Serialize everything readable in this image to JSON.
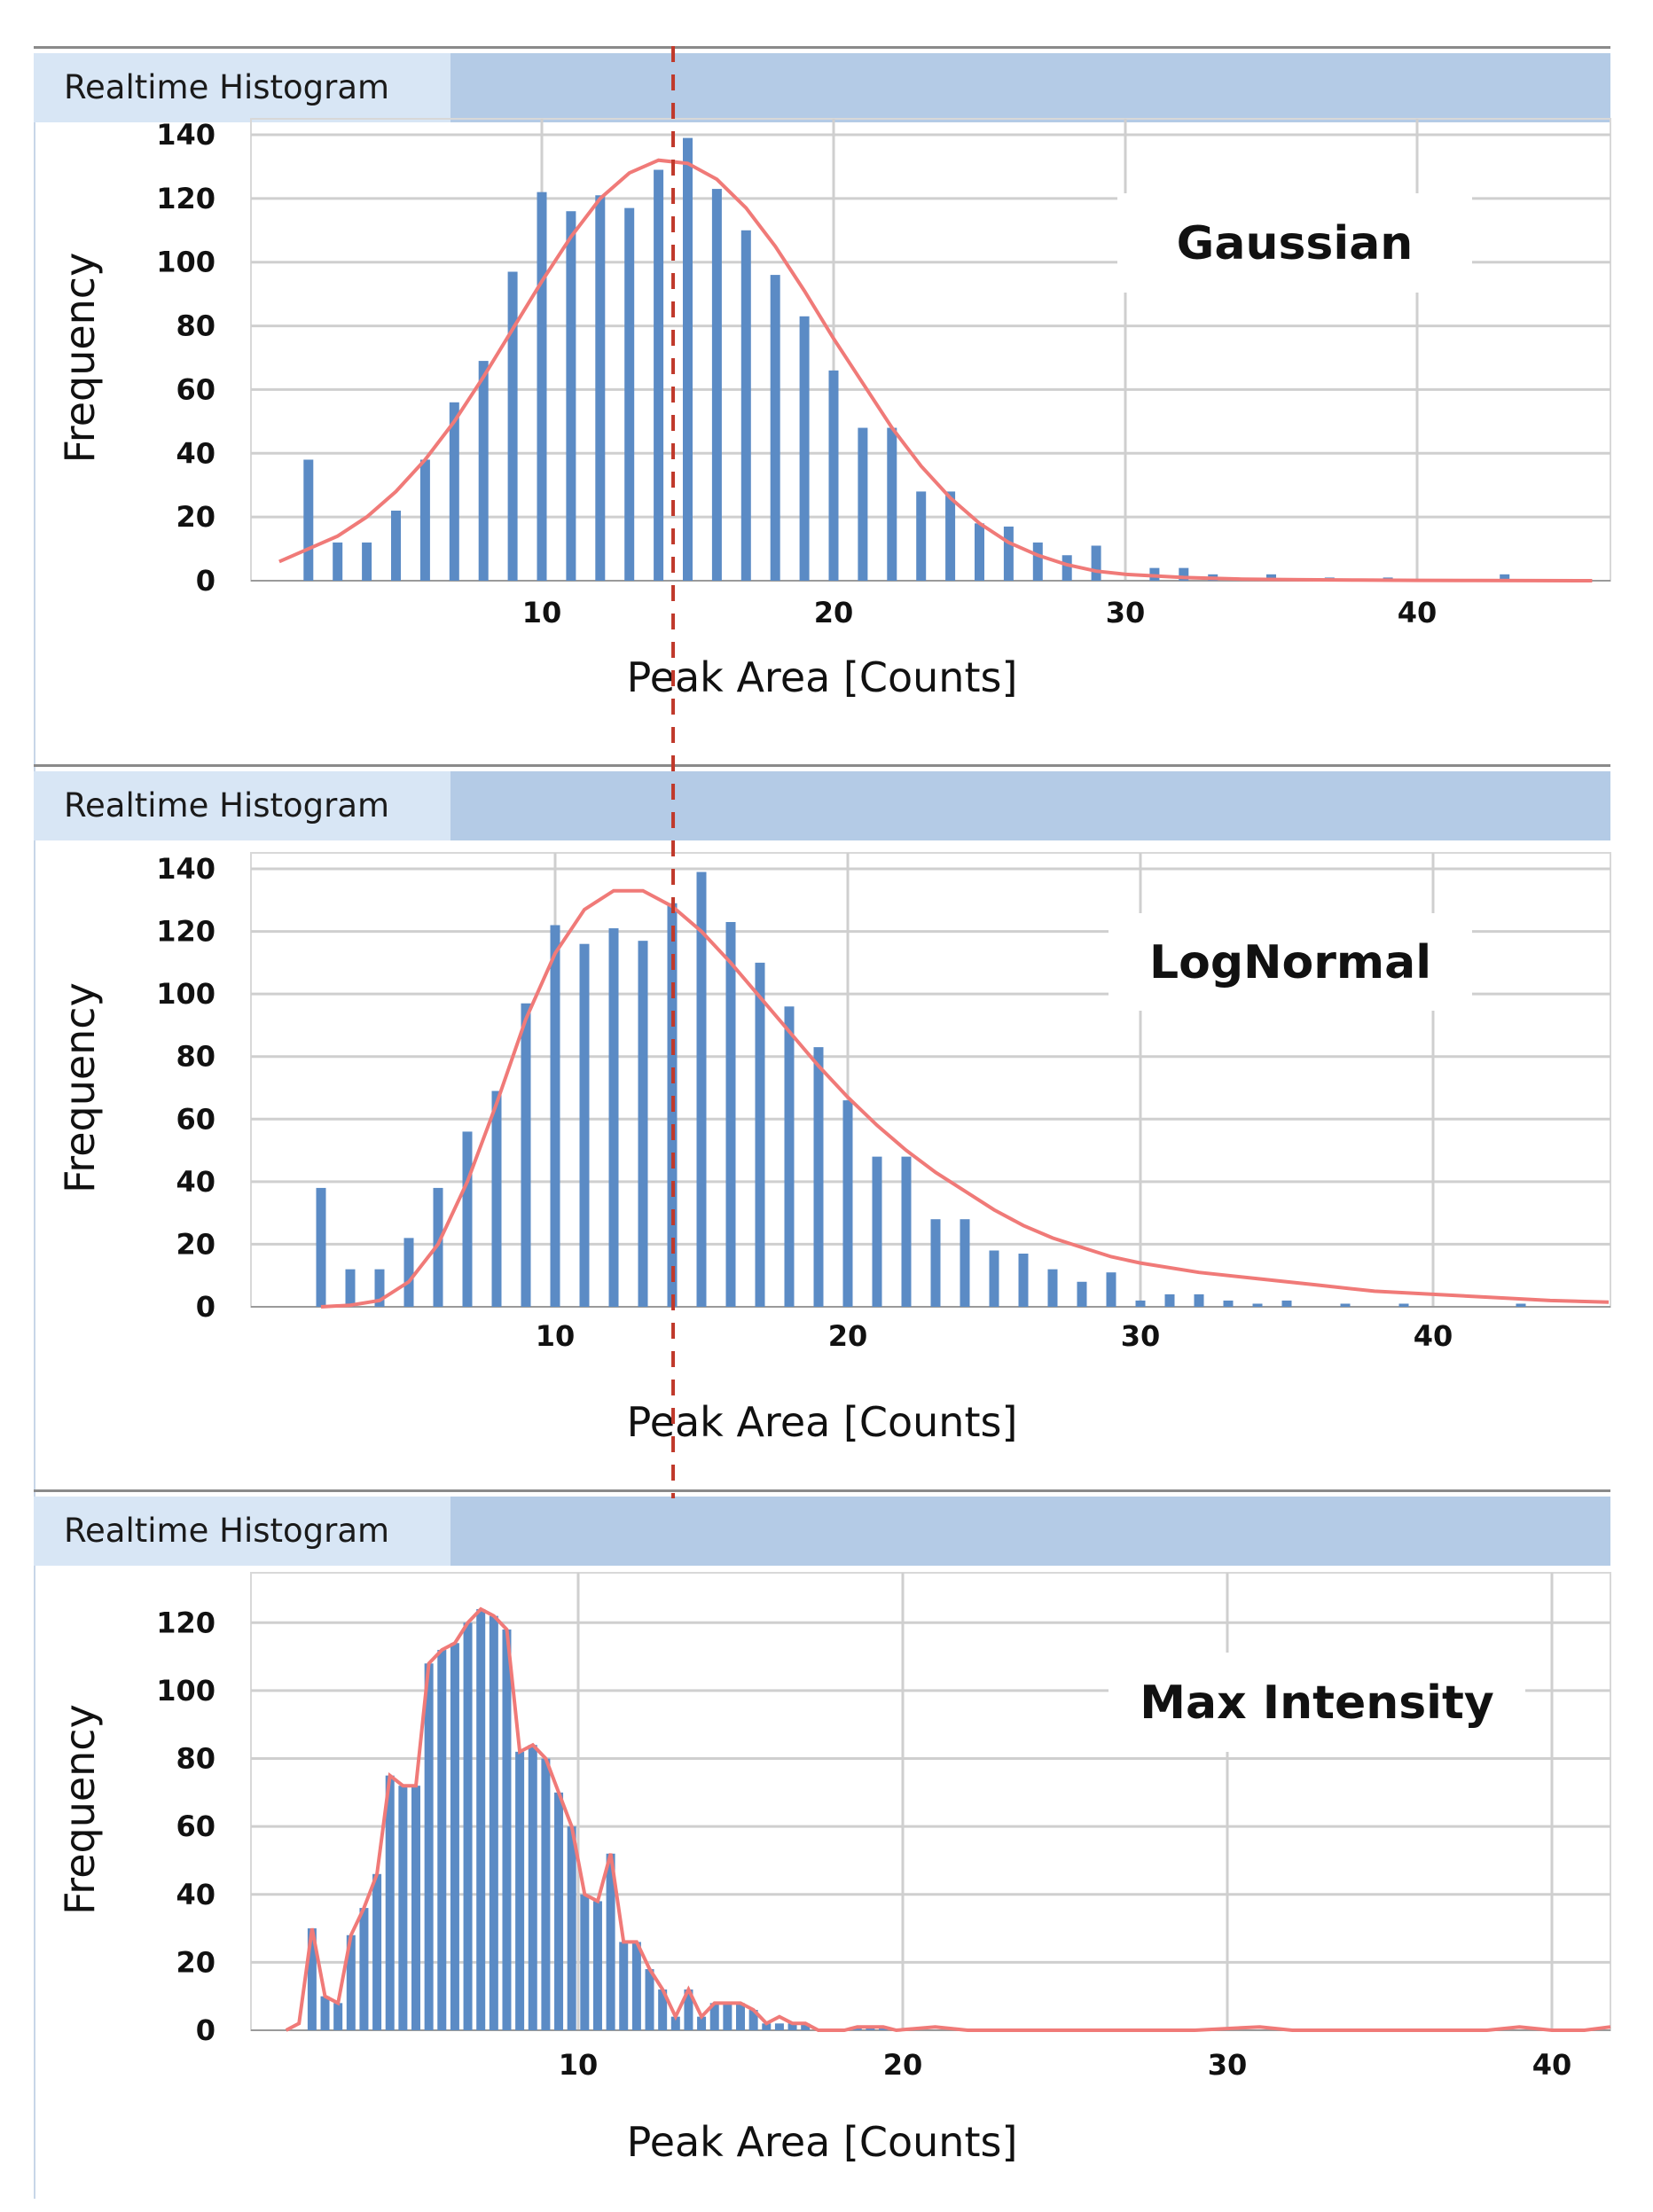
{
  "colors": {
    "bar": "#5b8bc5",
    "curve": "#f07a78",
    "mean_line": "#c0392b",
    "title_bar": "#b4cbe6",
    "title_tab": "#d8e6f5",
    "grid": "#cfcfcf"
  },
  "mean_line_x": 14.5,
  "chart_data": [
    {
      "type": "bar",
      "panel_title": "Realtime Histogram",
      "label": "Gaussian",
      "xlabel": "Peak Area [Counts]",
      "ylabel": "Frequency",
      "xlim": [
        1,
        46
      ],
      "ylim": [
        0,
        140
      ],
      "xticks": [
        10,
        20,
        30,
        40
      ],
      "yticks": [
        0,
        20,
        40,
        60,
        80,
        100,
        120,
        140
      ],
      "x": [
        2,
        3,
        4,
        5,
        6,
        7,
        8,
        9,
        10,
        11,
        12,
        13,
        14,
        15,
        16,
        17,
        18,
        19,
        20,
        21,
        22,
        23,
        24,
        25,
        26,
        27,
        28,
        29,
        30,
        31,
        32,
        33,
        34,
        35,
        36,
        37,
        38,
        39,
        40,
        41,
        42,
        43,
        44,
        45
      ],
      "values": [
        38,
        12,
        12,
        22,
        38,
        56,
        69,
        97,
        122,
        116,
        121,
        117,
        129,
        139,
        123,
        110,
        96,
        83,
        66,
        48,
        48,
        28,
        28,
        18,
        17,
        12,
        8,
        11,
        0,
        4,
        4,
        2,
        0,
        2,
        0,
        1,
        0,
        1,
        0,
        0,
        0,
        2,
        0,
        0
      ],
      "fit": {
        "name": "Gaussian fit",
        "x": [
          1,
          2,
          3,
          4,
          5,
          6,
          7,
          8,
          9,
          10,
          11,
          12,
          13,
          14,
          15,
          16,
          17,
          18,
          19,
          20,
          21,
          22,
          23,
          24,
          25,
          26,
          27,
          28,
          29,
          30,
          32,
          34,
          36,
          38,
          40,
          42,
          44,
          46
        ],
        "y": [
          6,
          10,
          14,
          20,
          28,
          38,
          50,
          64,
          79,
          94,
          108,
          120,
          128,
          132,
          131,
          126,
          117,
          105,
          91,
          76,
          62,
          48,
          36,
          26,
          18,
          12,
          8,
          5,
          3,
          2,
          1,
          0.5,
          0.3,
          0.2,
          0.1,
          0.05,
          0.02,
          0.01
        ]
      }
    },
    {
      "type": "bar",
      "panel_title": "Realtime Histogram",
      "label": "LogNormal",
      "xlabel": "Peak Area [Counts]",
      "ylabel": "Frequency",
      "xlim": [
        1,
        46
      ],
      "ylim": [
        0,
        140
      ],
      "xticks": [
        10,
        20,
        30,
        40
      ],
      "yticks": [
        0,
        20,
        40,
        60,
        80,
        100,
        120,
        140
      ],
      "x": [
        2,
        3,
        4,
        5,
        6,
        7,
        8,
        9,
        10,
        11,
        12,
        13,
        14,
        15,
        16,
        17,
        18,
        19,
        20,
        21,
        22,
        23,
        24,
        25,
        26,
        27,
        28,
        29,
        30,
        31,
        32,
        33,
        34,
        35,
        36,
        37,
        38,
        39,
        40,
        41,
        42,
        43,
        44,
        45
      ],
      "values": [
        38,
        12,
        12,
        22,
        38,
        56,
        69,
        97,
        122,
        116,
        121,
        117,
        129,
        139,
        123,
        110,
        96,
        83,
        66,
        48,
        48,
        28,
        28,
        18,
        17,
        12,
        8,
        11,
        2,
        4,
        4,
        2,
        1,
        2,
        0,
        1,
        0,
        1,
        0,
        0,
        0,
        1,
        0,
        0
      ],
      "fit": {
        "name": "LogNormal fit",
        "x": [
          2,
          3,
          4,
          5,
          6,
          7,
          8,
          9,
          10,
          11,
          12,
          13,
          14,
          15,
          16,
          17,
          18,
          19,
          20,
          21,
          22,
          23,
          24,
          25,
          26,
          27,
          28,
          29,
          30,
          32,
          34,
          36,
          38,
          40,
          42,
          44,
          46
        ],
        "y": [
          0,
          0.5,
          2,
          8,
          20,
          40,
          65,
          92,
          113,
          127,
          133,
          133,
          128,
          120,
          110,
          99,
          88,
          77,
          67,
          58,
          50,
          43,
          37,
          31,
          26,
          22,
          19,
          16,
          14,
          11,
          9,
          7,
          5,
          4,
          3,
          2,
          1.5
        ]
      }
    },
    {
      "type": "bar",
      "panel_title": "Realtime Histogram",
      "label": "Max Intensity",
      "xlabel": "Peak Area [Counts]",
      "ylabel": "Frequency",
      "xlim": [
        1,
        42
      ],
      "ylim": [
        0,
        130
      ],
      "xticks": [
        10,
        20,
        30,
        40
      ],
      "yticks": [
        0,
        20,
        40,
        60,
        80,
        100,
        120
      ],
      "bin_width": 0.4,
      "x": [
        1.8,
        2.2,
        2.6,
        3,
        3.4,
        3.8,
        4.2,
        4.6,
        5,
        5.4,
        5.8,
        6.2,
        6.6,
        7,
        7.4,
        7.8,
        8.2,
        8.6,
        9,
        9.4,
        9.8,
        10.2,
        10.6,
        11,
        11.4,
        11.8,
        12.2,
        12.6,
        13,
        13.4,
        13.8,
        14.2,
        14.6,
        15,
        15.4,
        15.8,
        16.2,
        16.6,
        17,
        17.4,
        17.8,
        18.2,
        18.6,
        19,
        19.4,
        19.8
      ],
      "values": [
        30,
        10,
        8,
        28,
        36,
        46,
        75,
        72,
        72,
        108,
        112,
        114,
        120,
        124,
        122,
        118,
        82,
        84,
        80,
        70,
        60,
        40,
        38,
        52,
        26,
        26,
        18,
        12,
        4,
        12,
        4,
        8,
        8,
        8,
        6,
        2,
        2,
        2,
        2,
        0,
        0,
        0,
        1,
        1,
        1,
        0
      ],
      "fit": {
        "name": "Max Intensity envelope",
        "x": [
          1,
          1.4,
          1.8,
          2.2,
          2.6,
          3,
          3.4,
          3.8,
          4.2,
          4.6,
          5,
          5.4,
          5.8,
          6.2,
          6.6,
          7,
          7.4,
          7.8,
          8.2,
          8.6,
          9,
          9.4,
          9.8,
          10.2,
          10.6,
          11,
          11.4,
          11.8,
          12.2,
          12.6,
          13,
          13.4,
          13.8,
          14.2,
          14.6,
          15,
          15.4,
          15.8,
          16.2,
          16.6,
          17,
          17.4,
          17.8,
          18.2,
          18.6,
          19,
          19.4,
          19.8,
          21,
          22,
          25,
          26,
          29,
          31,
          32,
          33,
          38,
          39,
          40,
          41,
          42
        ],
        "y": [
          0,
          2,
          30,
          10,
          8,
          28,
          36,
          46,
          75,
          72,
          72,
          108,
          112,
          114,
          120,
          124,
          122,
          118,
          82,
          84,
          80,
          70,
          60,
          40,
          38,
          52,
          26,
          26,
          18,
          12,
          4,
          12,
          4,
          8,
          8,
          8,
          6,
          2,
          4,
          2,
          2,
          0,
          0,
          0,
          1,
          1,
          1,
          0,
          1,
          0,
          0,
          0,
          0,
          1,
          0,
          0,
          0,
          1,
          0,
          0,
          1
        ]
      }
    }
  ]
}
